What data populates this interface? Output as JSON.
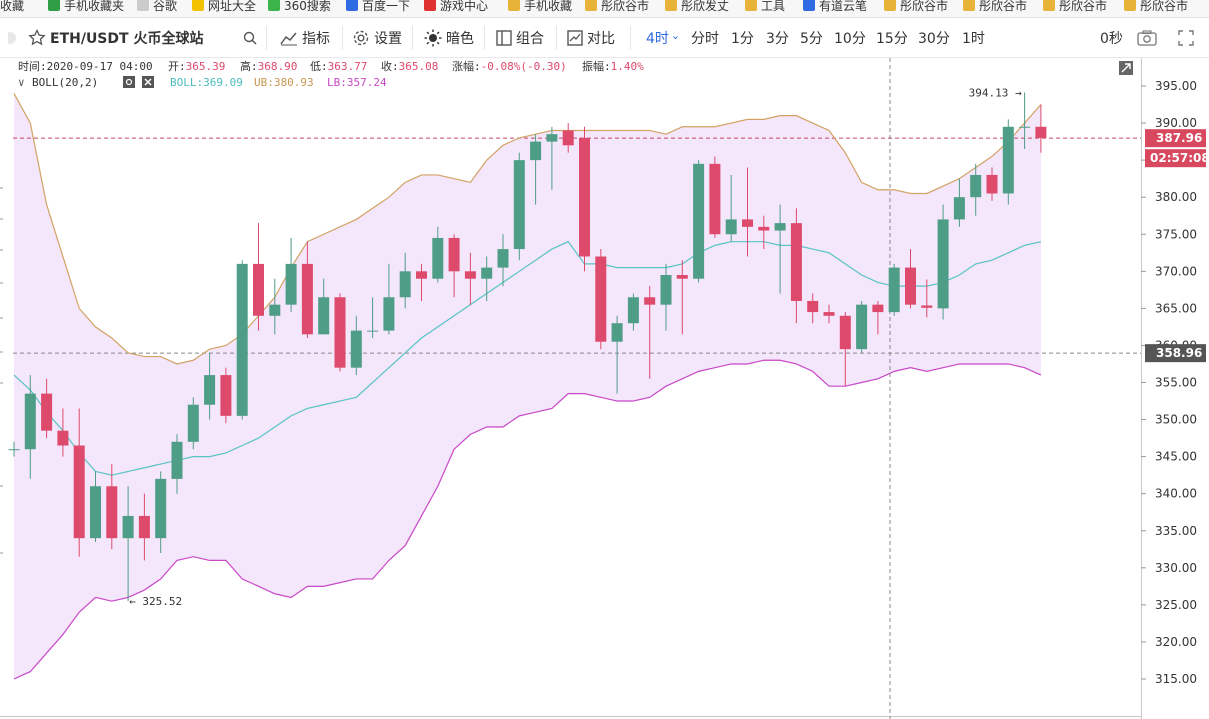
{
  "bookmarks": [
    {
      "label": "收藏",
      "color": "#888888"
    },
    {
      "label": "手机收藏夹",
      "color": "#2f9e44"
    },
    {
      "label": "谷歌",
      "color": "#cccccc"
    },
    {
      "label": "网址大全",
      "color": "#f2c200"
    },
    {
      "label": "360搜索",
      "color": "#3bb54a"
    },
    {
      "label": "百度一下",
      "color": "#2f6be3"
    },
    {
      "label": "游戏中心",
      "color": "#e03131"
    },
    {
      "label": "手机收藏",
      "color": "#e8b339"
    },
    {
      "label": "彤欣谷市",
      "color": "#e8b339"
    },
    {
      "label": "彤欣发丈",
      "color": "#e8b339"
    },
    {
      "label": "工具",
      "color": "#e8b339"
    },
    {
      "label": "有道云笔",
      "color": "#2f6be3"
    },
    {
      "label": "彤欣谷市",
      "color": "#e8b339"
    },
    {
      "label": "彤欣谷市",
      "color": "#e8b339"
    },
    {
      "label": "彤欣谷市",
      "color": "#e8b339"
    },
    {
      "label": "彤欣谷市",
      "color": "#e8b339"
    }
  ],
  "toolbar": {
    "symbol": "ETH/USDT 火币全球站",
    "indicator": "指标",
    "settings": "设置",
    "dark": "暗色",
    "combine": "组合",
    "compare": "对比",
    "timeframes": [
      "4时",
      "分时",
      "1分",
      "3分",
      "5分",
      "10分",
      "15分",
      "30分",
      "1时"
    ],
    "active_timeframe": "4时",
    "countdown": "0秒"
  },
  "info": {
    "time_label": "时间:",
    "time": "2020-09-17 04:00",
    "open_label": "开:",
    "open": "365.39",
    "high_label": "高:",
    "high": "368.90",
    "low_label": "低:",
    "low": "363.77",
    "close_label": "收:",
    "close": "365.08",
    "change_label": "涨幅:",
    "change": "-0.08%(-0.30)",
    "amp_label": "振幅:",
    "amp": "1.40%"
  },
  "boll": {
    "name": "BOLL(20,2)",
    "mid": "BOLL:369.09",
    "ub": "UB:380.93",
    "lb": "LB:357.24"
  },
  "colors": {
    "up": "#4e9d87",
    "down": "#de4a6b",
    "mid": "#58c4c4",
    "ub": "#d3a264",
    "lb": "#c848c8",
    "band": "#f4e6fb",
    "accent": "#2f6be3"
  },
  "chart_data": {
    "type": "candlestick",
    "ylim": [
      311,
      399
    ],
    "yticks": [
      315,
      320,
      325,
      330,
      335,
      340,
      345,
      350,
      355,
      360,
      365,
      370,
      375,
      380,
      385,
      390,
      395
    ],
    "tick_labels": [
      "315.00",
      "320.00",
      "325.00",
      "330.00",
      "335.00",
      "340.00",
      "345.00",
      "350.00",
      "355.00",
      "360.00",
      "365.00",
      "370.00",
      "375.00",
      "380.00",
      "385.00",
      "390.00",
      "395.00"
    ],
    "candles": [
      {
        "o": 346,
        "c": 346,
        "h": 347,
        "l": 345
      },
      {
        "o": 346,
        "c": 353.5,
        "h": 356,
        "l": 342
      },
      {
        "o": 353.5,
        "c": 348.5,
        "h": 355.5,
        "l": 347.5
      },
      {
        "o": 348.5,
        "c": 346.5,
        "h": 351.5,
        "l": 345
      },
      {
        "o": 346.5,
        "c": 334,
        "h": 351.5,
        "l": 331.5
      },
      {
        "o": 334,
        "c": 341,
        "h": 343,
        "l": 333.5
      },
      {
        "o": 341,
        "c": 334,
        "h": 344,
        "l": 332.5
      },
      {
        "o": 334,
        "c": 337,
        "h": 341,
        "l": 325.5
      },
      {
        "o": 337,
        "c": 334,
        "h": 340,
        "l": 331
      },
      {
        "o": 334,
        "c": 342,
        "h": 343,
        "l": 332
      },
      {
        "o": 342,
        "c": 347,
        "h": 348,
        "l": 340
      },
      {
        "o": 347,
        "c": 352,
        "h": 353,
        "l": 346
      },
      {
        "o": 352,
        "c": 356,
        "h": 359,
        "l": 350
      },
      {
        "o": 356,
        "c": 350.5,
        "h": 357,
        "l": 349.5
      },
      {
        "o": 350.5,
        "c": 371,
        "h": 371.5,
        "l": 350
      },
      {
        "o": 371,
        "c": 364,
        "h": 376.5,
        "l": 362
      },
      {
        "o": 364,
        "c": 365.5,
        "h": 369,
        "l": 361.5
      },
      {
        "o": 365.5,
        "c": 371,
        "h": 374.5,
        "l": 364.5
      },
      {
        "o": 371,
        "c": 361.5,
        "h": 374,
        "l": 361
      },
      {
        "o": 361.5,
        "c": 366.5,
        "h": 369,
        "l": 361.5
      },
      {
        "o": 366.5,
        "c": 357,
        "h": 367,
        "l": 356.5
      },
      {
        "o": 357,
        "c": 362,
        "h": 364,
        "l": 356
      },
      {
        "o": 362,
        "c": 362,
        "h": 366.5,
        "l": 361
      },
      {
        "o": 362,
        "c": 366.5,
        "h": 371,
        "l": 361.5
      },
      {
        "o": 366.5,
        "c": 370,
        "h": 372.5,
        "l": 365
      },
      {
        "o": 370,
        "c": 369,
        "h": 371,
        "l": 366
      },
      {
        "o": 369,
        "c": 374.5,
        "h": 376,
        "l": 368.5
      },
      {
        "o": 374.5,
        "c": 370,
        "h": 375,
        "l": 366.5
      },
      {
        "o": 370,
        "c": 369,
        "h": 372.5,
        "l": 365.5
      },
      {
        "o": 369,
        "c": 370.5,
        "h": 372,
        "l": 366
      },
      {
        "o": 370.5,
        "c": 373,
        "h": 375,
        "l": 368
      },
      {
        "o": 373,
        "c": 385,
        "h": 386,
        "l": 371.5
      },
      {
        "o": 385,
        "c": 387.5,
        "h": 388.5,
        "l": 379
      },
      {
        "o": 387.5,
        "c": 388.5,
        "h": 389.5,
        "l": 381
      },
      {
        "o": 389,
        "c": 387,
        "h": 390,
        "l": 386
      },
      {
        "o": 388,
        "c": 372,
        "h": 389.5,
        "l": 370
      },
      {
        "o": 372,
        "c": 360.5,
        "h": 373,
        "l": 359.5
      },
      {
        "o": 360.5,
        "c": 363,
        "h": 364,
        "l": 353.5
      },
      {
        "o": 363,
        "c": 366.5,
        "h": 367,
        "l": 362
      },
      {
        "o": 366.5,
        "c": 365.5,
        "h": 368,
        "l": 355.5
      },
      {
        "o": 365.5,
        "c": 369.5,
        "h": 371,
        "l": 362
      },
      {
        "o": 369.5,
        "c": 369,
        "h": 371.5,
        "l": 361.5
      },
      {
        "o": 369,
        "c": 384.5,
        "h": 385,
        "l": 368.5
      },
      {
        "o": 384.5,
        "c": 375,
        "h": 385.5,
        "l": 374.5
      },
      {
        "o": 375,
        "c": 377,
        "h": 383,
        "l": 374
      },
      {
        "o": 377,
        "c": 376,
        "h": 384,
        "l": 372
      },
      {
        "o": 376,
        "c": 375.5,
        "h": 377.5,
        "l": 373
      },
      {
        "o": 375.5,
        "c": 376.5,
        "h": 379,
        "l": 367
      },
      {
        "o": 376.5,
        "c": 366,
        "h": 378.5,
        "l": 363
      },
      {
        "o": 366,
        "c": 364.5,
        "h": 367,
        "l": 363
      },
      {
        "o": 364.5,
        "c": 364,
        "h": 365.5,
        "l": 363
      },
      {
        "o": 364,
        "c": 359.5,
        "h": 364.5,
        "l": 354.5
      },
      {
        "o": 359.5,
        "c": 365.5,
        "h": 366,
        "l": 359
      },
      {
        "o": 365.5,
        "c": 364.5,
        "h": 366,
        "l": 361.5
      },
      {
        "o": 364.5,
        "c": 370.5,
        "h": 371,
        "l": 364
      },
      {
        "o": 370.5,
        "c": 365.5,
        "h": 373,
        "l": 365
      },
      {
        "o": 365.39,
        "c": 365.08,
        "h": 368.9,
        "l": 363.77
      },
      {
        "o": 365,
        "c": 377,
        "h": 379,
        "l": 363.5
      },
      {
        "o": 377,
        "c": 380,
        "h": 382.5,
        "l": 376
      },
      {
        "o": 380,
        "c": 383,
        "h": 384.5,
        "l": 377.5
      },
      {
        "o": 383,
        "c": 380.5,
        "h": 384,
        "l": 379.5
      },
      {
        "o": 380.5,
        "c": 389.5,
        "h": 390.5,
        "l": 379
      },
      {
        "o": 389.5,
        "c": 389.5,
        "h": 394.13,
        "l": 386.5
      },
      {
        "o": 389.5,
        "c": 388,
        "h": 392.5,
        "l": 386
      }
    ],
    "boll_mid": [
      356,
      354,
      351,
      348.5,
      345.5,
      343,
      342.5,
      343,
      343.5,
      344,
      344.5,
      345,
      345,
      345.5,
      346.5,
      347.5,
      349,
      350.5,
      351.5,
      352,
      352.5,
      353,
      355,
      357,
      359,
      361,
      362.5,
      364,
      365.5,
      367,
      368.5,
      370,
      371.5,
      373,
      374,
      371,
      371,
      370.5,
      370.5,
      370.5,
      370.5,
      371,
      372.5,
      373.5,
      374,
      374,
      374,
      373.5,
      373.5,
      373,
      372.5,
      371,
      369.5,
      368.5,
      368,
      368,
      368,
      368.5,
      369.5,
      371,
      371.5,
      372.5,
      373.5,
      374
    ],
    "boll_ub": [
      394,
      390,
      379,
      372,
      365,
      362.5,
      361,
      359,
      358.5,
      358.5,
      357.5,
      358,
      359.5,
      360,
      361.5,
      364,
      366.5,
      370.5,
      374,
      375,
      376,
      377,
      378.5,
      380,
      382,
      383,
      383,
      382.5,
      382,
      385,
      387,
      388,
      388.5,
      389,
      389,
      389,
      389,
      389,
      389,
      389,
      388.5,
      389.5,
      389.5,
      389.5,
      390,
      390.5,
      390.5,
      391,
      391,
      390,
      389,
      386,
      382,
      381,
      381,
      380.5,
      380.5,
      381.5,
      382.5,
      384,
      385.5,
      387.5,
      390,
      392.5
    ],
    "boll_lb": [
      315,
      316,
      318.5,
      321,
      324,
      326,
      325.5,
      326,
      327,
      328.5,
      331,
      331.5,
      331,
      331,
      328.5,
      327.5,
      326.5,
      326,
      327.5,
      327.5,
      328,
      328.5,
      328.5,
      331,
      333,
      337,
      341,
      346,
      348,
      349,
      349,
      350.5,
      351,
      351.5,
      353.5,
      353.5,
      353,
      352.5,
      352.5,
      353,
      354.5,
      355.5,
      356.5,
      357,
      357.5,
      357.5,
      358,
      358,
      357.5,
      356.5,
      354.5,
      354.5,
      355,
      355.5,
      356.5,
      357,
      356.5,
      357,
      357.5,
      357.5,
      357.5,
      357.5,
      357,
      356
    ],
    "annotations": {
      "high_label": "394.13 →",
      "low_label": "← 325.52",
      "last_price": "387.96",
      "countdown": "02:57:08",
      "crosshair_price": "358.96"
    },
    "crosshair": {
      "index": 56,
      "price": 358.96
    },
    "last_price_value": 387.96
  }
}
